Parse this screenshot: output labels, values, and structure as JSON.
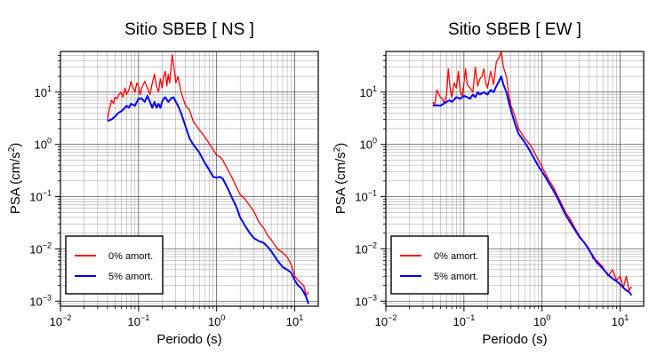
{
  "chart_data": [
    {
      "type": "line",
      "title": "Sitio SBEB [ NS ]",
      "xlabel": "Periodo (s)",
      "ylabel": "PSA (cm/s²)",
      "ylabel_main": "PSA (cm/s",
      "ylabel_sup": "2",
      "ylabel_close": ")",
      "x_scale": "log",
      "y_scale": "log",
      "xlim": [
        0.01,
        20
      ],
      "ylim": [
        0.0008,
        60
      ],
      "x_ticks": [
        {
          "value": 0.01,
          "base": "10",
          "exp": "−2"
        },
        {
          "value": 0.1,
          "base": "10",
          "exp": "−1"
        },
        {
          "value": 1,
          "base": "10",
          "exp": "0"
        },
        {
          "value": 10,
          "base": "10",
          "exp": "1"
        }
      ],
      "y_ticks": [
        {
          "value": 0.001,
          "base": "10",
          "exp": "−3"
        },
        {
          "value": 0.01,
          "base": "10",
          "exp": "−2"
        },
        {
          "value": 0.1,
          "base": "10",
          "exp": "−1"
        },
        {
          "value": 1,
          "base": "10",
          "exp": "0"
        },
        {
          "value": 10,
          "base": "10",
          "exp": "1"
        }
      ],
      "grid": true,
      "legend_position": "bottom-left",
      "series": [
        {
          "name": "0% amort.",
          "color": "#ff0000",
          "x": [
            0.04,
            0.042,
            0.045,
            0.048,
            0.05,
            0.053,
            0.056,
            0.06,
            0.063,
            0.067,
            0.07,
            0.075,
            0.08,
            0.085,
            0.09,
            0.095,
            0.1,
            0.105,
            0.11,
            0.12,
            0.13,
            0.14,
            0.15,
            0.16,
            0.17,
            0.18,
            0.19,
            0.2,
            0.21,
            0.22,
            0.23,
            0.24,
            0.25,
            0.26,
            0.27,
            0.28,
            0.3,
            0.32,
            0.35,
            0.4,
            0.45,
            0.5,
            0.6,
            0.7,
            0.8,
            0.9,
            1.0,
            1.1,
            1.2,
            1.4,
            1.6,
            1.8,
            2.0,
            2.3,
            2.6,
            3.0,
            3.5,
            4.0,
            4.5,
            5.0,
            6.0,
            7.0,
            8.0,
            9.0,
            10,
            11,
            12,
            13,
            14,
            15
          ],
          "y": [
            3.0,
            4.5,
            7.0,
            6.0,
            8.0,
            7.5,
            9.0,
            10,
            8.0,
            12,
            9.0,
            11,
            16,
            12,
            10,
            15,
            13,
            9.0,
            12,
            16,
            12,
            9.0,
            15,
            22,
            13,
            10,
            18,
            12,
            20,
            25,
            13,
            22,
            15,
            28,
            52,
            35,
            15,
            20,
            10,
            5.5,
            4.5,
            2.8,
            1.9,
            1.4,
            1.05,
            0.8,
            0.62,
            0.58,
            0.5,
            0.32,
            0.22,
            0.15,
            0.11,
            0.09,
            0.07,
            0.052,
            0.032,
            0.025,
            0.018,
            0.015,
            0.01,
            0.0085,
            0.007,
            0.005,
            0.003,
            0.0025,
            0.0022,
            0.002,
            0.0013,
            0.0015
          ]
        },
        {
          "name": "5% amort.",
          "color": "#0000ff",
          "x": [
            0.04,
            0.045,
            0.05,
            0.055,
            0.06,
            0.065,
            0.07,
            0.075,
            0.08,
            0.09,
            0.1,
            0.11,
            0.12,
            0.13,
            0.14,
            0.15,
            0.16,
            0.17,
            0.18,
            0.19,
            0.2,
            0.21,
            0.22,
            0.24,
            0.26,
            0.28,
            0.3,
            0.32,
            0.35,
            0.4,
            0.45,
            0.5,
            0.6,
            0.7,
            0.8,
            0.9,
            1.0,
            1.1,
            1.2,
            1.4,
            1.6,
            1.8,
            2.0,
            2.3,
            2.6,
            3.0,
            3.5,
            4.0,
            4.5,
            5.0,
            6.0,
            7.0,
            8.0,
            9.0,
            10,
            11,
            12,
            13,
            14,
            15
          ],
          "y": [
            2.8,
            3.0,
            3.4,
            4.0,
            4.3,
            4.8,
            5.5,
            5.0,
            6.0,
            5.5,
            7.5,
            7.5,
            6.5,
            8.5,
            6.5,
            5.0,
            6.5,
            5.0,
            6.0,
            5.0,
            6.5,
            7.5,
            8.0,
            6.5,
            7.5,
            8.0,
            6.5,
            5.5,
            4.0,
            2.2,
            1.3,
            1.0,
            0.7,
            0.45,
            0.33,
            0.24,
            0.23,
            0.24,
            0.22,
            0.14,
            0.09,
            0.062,
            0.04,
            0.028,
            0.021,
            0.016,
            0.014,
            0.013,
            0.011,
            0.009,
            0.006,
            0.0045,
            0.004,
            0.0035,
            0.0025,
            0.002,
            0.0018,
            0.0015,
            0.0012,
            0.00088
          ]
        }
      ]
    },
    {
      "type": "line",
      "title": "Sitio SBEB [ EW ]",
      "xlabel": "Periodo (s)",
      "ylabel": "PSA (cm/s²)",
      "ylabel_main": "PSA (cm/s",
      "ylabel_sup": "2",
      "ylabel_close": ")",
      "x_scale": "log",
      "y_scale": "log",
      "xlim": [
        0.01,
        20
      ],
      "ylim": [
        0.0008,
        60
      ],
      "x_ticks": [
        {
          "value": 0.01,
          "base": "10",
          "exp": "−2"
        },
        {
          "value": 0.1,
          "base": "10",
          "exp": "−1"
        },
        {
          "value": 1,
          "base": "10",
          "exp": "0"
        },
        {
          "value": 10,
          "base": "10",
          "exp": "1"
        }
      ],
      "y_ticks": [
        {
          "value": 0.001,
          "base": "10",
          "exp": "−3"
        },
        {
          "value": 0.01,
          "base": "10",
          "exp": "−2"
        },
        {
          "value": 0.1,
          "base": "10",
          "exp": "−1"
        },
        {
          "value": 1,
          "base": "10",
          "exp": "0"
        },
        {
          "value": 10,
          "base": "10",
          "exp": "1"
        }
      ],
      "grid": true,
      "legend_position": "bottom-left",
      "series": [
        {
          "name": "0% amort.",
          "color": "#ff0000",
          "x": [
            0.04,
            0.042,
            0.045,
            0.048,
            0.05,
            0.053,
            0.056,
            0.06,
            0.063,
            0.067,
            0.07,
            0.075,
            0.08,
            0.085,
            0.09,
            0.095,
            0.1,
            0.105,
            0.11,
            0.12,
            0.13,
            0.14,
            0.15,
            0.16,
            0.17,
            0.18,
            0.19,
            0.2,
            0.22,
            0.24,
            0.26,
            0.28,
            0.3,
            0.32,
            0.35,
            0.38,
            0.4,
            0.45,
            0.5,
            0.6,
            0.7,
            0.8,
            0.9,
            1.0,
            1.1,
            1.2,
            1.4,
            1.6,
            1.8,
            2.0,
            2.3,
            2.6,
            3.0,
            3.5,
            4.0,
            4.5,
            5.0,
            6.0,
            7.0,
            8.0,
            9.0,
            10,
            11,
            12,
            13,
            14
          ],
          "y": [
            6.5,
            5.5,
            11,
            9.0,
            8.0,
            7.5,
            6.0,
            9.0,
            28,
            11,
            8.0,
            15,
            12,
            25,
            10,
            8.5,
            15,
            28,
            14,
            12,
            10,
            30,
            13,
            18,
            20,
            28,
            15,
            12,
            25,
            14,
            38,
            45,
            60,
            30,
            20,
            8.0,
            5.5,
            3.5,
            2.0,
            1.3,
            1.0,
            0.7,
            0.5,
            0.37,
            0.28,
            0.22,
            0.15,
            0.1,
            0.07,
            0.05,
            0.037,
            0.026,
            0.018,
            0.013,
            0.01,
            0.0065,
            0.006,
            0.0045,
            0.003,
            0.004,
            0.0025,
            0.003,
            0.0018,
            0.003,
            0.0016,
            0.0019
          ]
        },
        {
          "name": "5% amort.",
          "color": "#0000ff",
          "x": [
            0.04,
            0.045,
            0.05,
            0.055,
            0.06,
            0.065,
            0.07,
            0.08,
            0.09,
            0.1,
            0.11,
            0.12,
            0.13,
            0.14,
            0.15,
            0.16,
            0.17,
            0.18,
            0.2,
            0.22,
            0.24,
            0.26,
            0.28,
            0.3,
            0.32,
            0.35,
            0.38,
            0.4,
            0.45,
            0.5,
            0.6,
            0.7,
            0.8,
            0.9,
            1.0,
            1.1,
            1.2,
            1.4,
            1.6,
            1.8,
            2.0,
            2.3,
            2.6,
            3.0,
            3.5,
            4.0,
            4.5,
            5.0,
            6.0,
            7.0,
            8.0,
            9.0,
            10,
            11,
            12,
            13,
            14
          ],
          "y": [
            5.5,
            5.6,
            5.5,
            6.0,
            6.5,
            7.0,
            6.5,
            8.0,
            7.5,
            8.5,
            8.0,
            7.5,
            9.0,
            8.0,
            10,
            9.0,
            9.5,
            10,
            9.0,
            11,
            10,
            13,
            16,
            20,
            14,
            10,
            6.0,
            4.5,
            2.5,
            1.6,
            1.1,
            0.75,
            0.52,
            0.38,
            0.3,
            0.24,
            0.19,
            0.13,
            0.09,
            0.062,
            0.045,
            0.032,
            0.024,
            0.017,
            0.013,
            0.0095,
            0.0072,
            0.0055,
            0.0042,
            0.0032,
            0.0027,
            0.0024,
            0.0021,
            0.0018,
            0.0016,
            0.0015,
            0.0013
          ]
        }
      ]
    }
  ]
}
